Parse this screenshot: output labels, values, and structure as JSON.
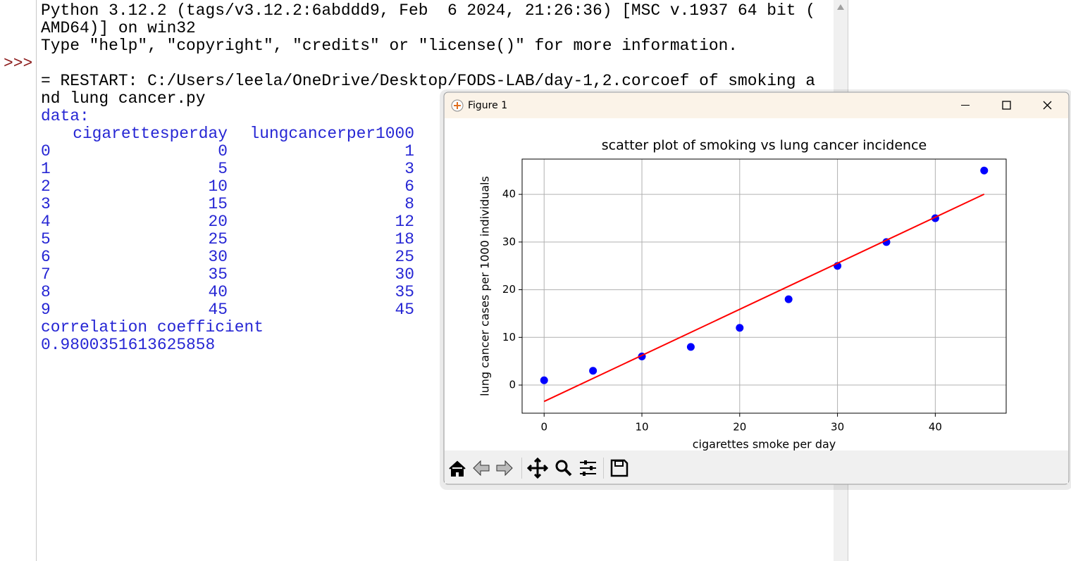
{
  "shell": {
    "banner": [
      "Python 3.12.2 (tags/v3.12.2:6abddd9, Feb  6 2024, 21:26:36) [MSC v.1937 64 bit (",
      "AMD64)] on win32",
      "Type \"help\", \"copyright\", \"credits\" or \"license()\" for more information."
    ],
    "prompt": ">>>",
    "restart": [
      "= RESTART: C:/Users/leela/OneDrive/Desktop/FODS-LAB/day-1,2.corcoef of smoking a",
      "nd lung cancer.py"
    ],
    "data_label": "data:",
    "table": {
      "columns": [
        "cigarettesperday",
        "lungcancerper1000"
      ],
      "index": [
        0,
        1,
        2,
        3,
        4,
        5,
        6,
        7,
        8,
        9
      ],
      "rows": [
        [
          0,
          1
        ],
        [
          5,
          3
        ],
        [
          10,
          6
        ],
        [
          15,
          8
        ],
        [
          20,
          12
        ],
        [
          25,
          18
        ],
        [
          30,
          25
        ],
        [
          35,
          30
        ],
        [
          40,
          35
        ],
        [
          45,
          45
        ]
      ]
    },
    "corr_label": "correlation coefficient",
    "corr_value": 0.9800351613625858
  },
  "window": {
    "title": "Figure 1"
  },
  "chart_data": {
    "type": "scatter",
    "title": "scatter plot of smoking vs lung cancer incidence",
    "x_label": "cigarettes smoke per day",
    "y_label": "lung cancer cases per 1000 individuals",
    "series": [
      {
        "type": "scatter",
        "color": "#0000ff",
        "x": [
          0,
          5,
          10,
          15,
          20,
          25,
          30,
          35,
          40,
          45
        ],
        "values": [
          1,
          3,
          6,
          8,
          12,
          18,
          25,
          30,
          35,
          45
        ]
      },
      {
        "type": "line",
        "color": "#ff0000",
        "x": [
          0,
          45
        ],
        "values": [
          -3.44,
          40.04
        ]
      }
    ],
    "xlim": [
      -2.25,
      47.25
    ],
    "ylim": [
      -5.9,
      47.4
    ],
    "xticks": [
      0,
      10,
      20,
      30,
      40
    ],
    "yticks": [
      0,
      10,
      20,
      30,
      40
    ],
    "grid": true
  }
}
